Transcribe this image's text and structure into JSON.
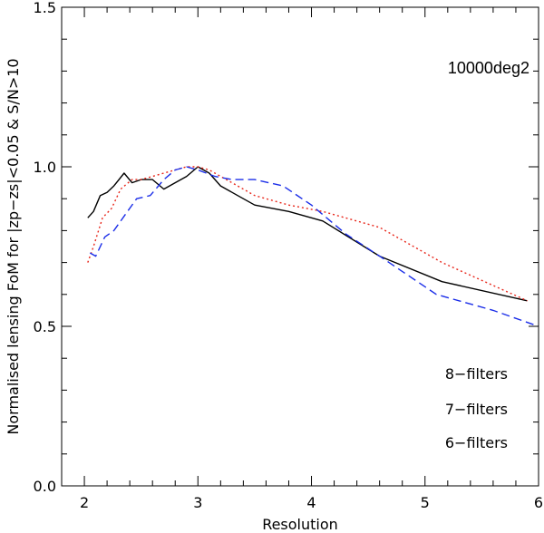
{
  "chart_data": {
    "type": "line",
    "title": "",
    "xlabel": "Resolution",
    "ylabel": "Normalised lensing FoM for |zp−zs|<0.05 & S/N>10",
    "annotation": "10000deg2",
    "xlim": [
      1.8,
      6.0
    ],
    "ylim": [
      0.0,
      1.5
    ],
    "xticks": [
      2,
      3,
      4,
      5,
      6
    ],
    "xtick_labels": [
      "2",
      "3",
      "4",
      "5",
      "6"
    ],
    "yticks": [
      0.0,
      0.5,
      1.0,
      1.5
    ],
    "ytick_labels": [
      "0.0",
      "0.5",
      "1.0",
      "1.5"
    ],
    "legend_position": "bottom-right",
    "series": [
      {
        "name": "8-filters",
        "label": "8−filters",
        "color": "#000000",
        "dash": "",
        "x": [
          2.03,
          2.08,
          2.14,
          2.2,
          2.26,
          2.35,
          2.42,
          2.5,
          2.6,
          2.7,
          2.8,
          2.9,
          3.0,
          3.1,
          3.2,
          3.35,
          3.5,
          3.8,
          4.1,
          4.6,
          5.15,
          5.9
        ],
        "y": [
          0.84,
          0.86,
          0.91,
          0.92,
          0.94,
          0.98,
          0.95,
          0.96,
          0.96,
          0.93,
          0.95,
          0.97,
          1.0,
          0.98,
          0.94,
          0.91,
          0.88,
          0.86,
          0.83,
          0.72,
          0.64,
          0.58
        ]
      },
      {
        "name": "7-filters",
        "label": "7−filters",
        "color": "#e8261a",
        "dash": "2,3",
        "x": [
          2.03,
          2.08,
          2.16,
          2.24,
          2.32,
          2.42,
          2.5,
          2.6,
          2.7,
          2.8,
          2.9,
          3.0,
          3.1,
          3.2,
          3.3,
          3.5,
          3.8,
          4.1,
          4.6,
          5.15,
          5.9
        ],
        "y": [
          0.7,
          0.75,
          0.84,
          0.87,
          0.93,
          0.96,
          0.96,
          0.97,
          0.98,
          0.99,
          1.0,
          1.0,
          0.99,
          0.97,
          0.95,
          0.91,
          0.88,
          0.86,
          0.81,
          0.7,
          0.58
        ]
      },
      {
        "name": "6-filters",
        "label": "6−filters",
        "color": "#1a2de8",
        "dash": "9,5",
        "x": [
          2.05,
          2.1,
          2.18,
          2.26,
          2.36,
          2.46,
          2.58,
          2.7,
          2.8,
          2.9,
          3.0,
          3.15,
          3.3,
          3.5,
          3.75,
          4.0,
          4.3,
          4.6,
          5.1,
          5.6,
          6.0
        ],
        "y": [
          0.73,
          0.72,
          0.78,
          0.8,
          0.85,
          0.9,
          0.91,
          0.96,
          0.99,
          1.0,
          0.99,
          0.97,
          0.96,
          0.96,
          0.94,
          0.88,
          0.79,
          0.72,
          0.6,
          0.55,
          0.5
        ]
      }
    ]
  }
}
